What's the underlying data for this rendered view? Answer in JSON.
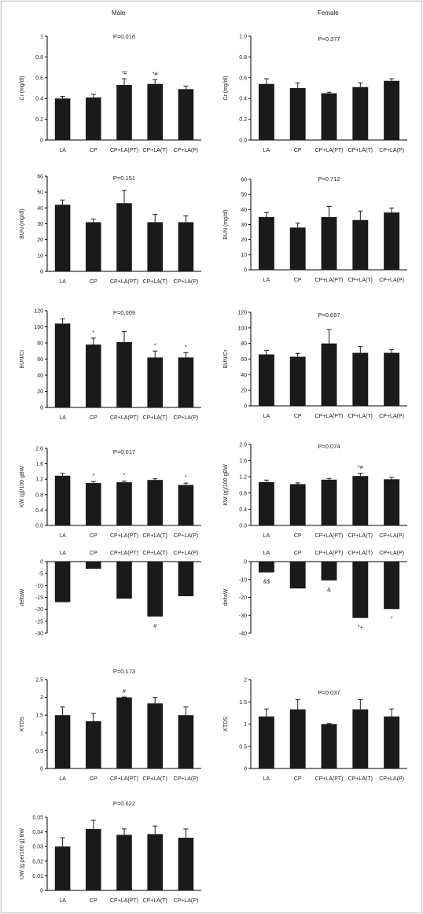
{
  "headers": {
    "male": "Male",
    "female": "Female"
  },
  "colors": {
    "bar": "#1a1a1a",
    "axis": "#000000",
    "text": "#222222"
  },
  "chart_data": [
    {
      "id": "m-cr",
      "type": "bar",
      "ylabel": "Cr (mg/dl)",
      "pvalue": "P=0.016",
      "categories": [
        "LA",
        "CP",
        "CP+LA(PT)",
        "CP+LA(T)",
        "CP+LA(P)"
      ],
      "values": [
        0.4,
        0.41,
        0.53,
        0.54,
        0.49
      ],
      "errors": [
        0.02,
        0.03,
        0.06,
        0.04,
        0.03
      ],
      "marks": [
        "",
        "",
        "*#",
        "*#",
        ""
      ],
      "ylim": [
        0,
        1.0
      ],
      "yticks": [
        "0",
        "0.2",
        "0.4",
        "0.6",
        "0.8",
        "1"
      ]
    },
    {
      "id": "f-cr",
      "type": "bar",
      "ylabel": "Cr (mg/dl)",
      "pvalue": "P=0.377",
      "categories": [
        "LA",
        "CP",
        "CP+LA(PT)",
        "CP+LA(T)",
        "CP+LA(P)"
      ],
      "values": [
        0.54,
        0.5,
        0.45,
        0.51,
        0.57
      ],
      "errors": [
        0.05,
        0.05,
        0.01,
        0.04,
        0.02
      ],
      "marks": [
        "",
        "",
        "",
        "",
        ""
      ],
      "ylim": [
        0,
        1.0
      ],
      "yticks": [
        "0.0",
        "0.2",
        "0.4",
        "0.6",
        "0.8",
        "1.0"
      ]
    },
    {
      "id": "m-bun",
      "type": "bar",
      "ylabel": "BUN (mg/dl)",
      "pvalue": "P=0.151",
      "categories": [
        "LA",
        "CP",
        "CP+LA(PT)",
        "CP+LA(T)",
        "CP+LA(P)"
      ],
      "values": [
        42,
        31,
        43,
        31,
        31
      ],
      "errors": [
        3,
        2,
        8,
        5,
        4
      ],
      "marks": [
        "",
        "",
        "",
        "",
        ""
      ],
      "ylim": [
        0,
        60
      ],
      "yticks": [
        "0",
        "10",
        "20",
        "30",
        "40",
        "50",
        "60"
      ]
    },
    {
      "id": "f-bun",
      "type": "bar",
      "ylabel": "BUN (mg/dl)",
      "pvalue": "P=0.712",
      "categories": [
        "LA",
        "CP",
        "CP+LA(PT)",
        "CP+LA(T)",
        "CP+LA(P)"
      ],
      "values": [
        35,
        28,
        35,
        33,
        38
      ],
      "errors": [
        3,
        3,
        7,
        6,
        3
      ],
      "marks": [
        "",
        "",
        "",
        "",
        ""
      ],
      "ylim": [
        0,
        60
      ],
      "yticks": [
        "0",
        "10",
        "20",
        "30",
        "40",
        "50",
        "60"
      ]
    },
    {
      "id": "m-buncr",
      "type": "bar",
      "ylabel": "BUN/Cr",
      "pvalue": "P=0.009",
      "categories": [
        "LA",
        "CP",
        "CP+LA(PT)",
        "CP+LA(T)",
        "CP+LA(P)"
      ],
      "values": [
        104,
        78,
        81,
        62,
        62
      ],
      "errors": [
        6,
        8,
        13,
        8,
        6
      ],
      "marks": [
        "",
        "*",
        "",
        "*",
        "*"
      ],
      "ylim": [
        0,
        120
      ],
      "yticks": [
        "0",
        "20",
        "40",
        "60",
        "80",
        "100",
        "120"
      ]
    },
    {
      "id": "f-buncr",
      "type": "bar",
      "ylabel": "BUN/Cr",
      "pvalue": "P=0.697",
      "categories": [
        "LA",
        "CP",
        "CP+LA(PT)",
        "CP+LA(T)",
        "CP+LA(P)"
      ],
      "values": [
        66,
        63,
        80,
        68,
        68
      ],
      "errors": [
        5,
        4,
        18,
        8,
        4
      ],
      "marks": [
        "",
        "",
        "",
        "",
        ""
      ],
      "ylim": [
        0,
        120
      ],
      "yticks": [
        "0",
        "20",
        "40",
        "60",
        "80",
        "100",
        "120"
      ]
    },
    {
      "id": "m-kw",
      "type": "bar",
      "ylabel": "KW (g)/100 gBW",
      "pvalue": "P=0.017",
      "categories": [
        "LA",
        "CP",
        "CP+LA(PT)",
        "CP+LA(T)",
        "CP+LA(P)"
      ],
      "values": [
        1.29,
        1.1,
        1.12,
        1.18,
        1.05
      ],
      "errors": [
        0.06,
        0.04,
        0.03,
        0.03,
        0.05
      ],
      "marks": [
        "",
        "*",
        "*",
        "",
        "*"
      ],
      "ylim": [
        0,
        2.0
      ],
      "yticks": [
        "0.0",
        "0.4",
        "0.8",
        "1.2",
        "1.6",
        "2.0"
      ]
    },
    {
      "id": "f-kw",
      "type": "bar",
      "ylabel": "KW (g)/100 gBW",
      "pvalue": "P=0.074",
      "categories": [
        "LA",
        "CP",
        "CP+LA(PT)",
        "CP+LA(T)",
        "CP+LA(P)"
      ],
      "values": [
        1.07,
        1.02,
        1.13,
        1.22,
        1.14
      ],
      "errors": [
        0.05,
        0.03,
        0.03,
        0.07,
        0.05
      ],
      "marks": [
        "",
        "",
        "",
        "*#",
        ""
      ],
      "ylim": [
        0,
        2.0
      ],
      "yticks": [
        "0.0",
        "0.4",
        "0.8",
        "1.2",
        "1.6",
        "2.0"
      ]
    },
    {
      "id": "m-dw",
      "type": "bar",
      "ylabel": "deltaW",
      "pvalue": "",
      "categories": [
        "LA",
        "CP",
        "CP+LA(PT)",
        "CP+LA(T)",
        "CP+LA(P)"
      ],
      "values": [
        -17,
        -3,
        -15.5,
        -23,
        -14.5
      ],
      "errors": [
        0,
        0,
        0,
        0,
        0
      ],
      "marks": [
        "",
        "",
        "",
        "#",
        ""
      ],
      "ylim": [
        -30,
        0
      ],
      "yticks": [
        "-30",
        "-25",
        "-20",
        "-15",
        "-10",
        "-5",
        "0"
      ]
    },
    {
      "id": "f-dw",
      "type": "bar",
      "ylabel": "deltaW",
      "pvalue": "",
      "categories": [
        "LA",
        "CP",
        "CP+LA(PT)",
        "CP+LA(T)",
        "CP+LA(P)"
      ],
      "values": [
        -6,
        -15,
        -10.5,
        -31.5,
        -26.5
      ],
      "errors": [
        0,
        0,
        0,
        0,
        0
      ],
      "marks": [
        "&$",
        "",
        "&",
        "*+",
        "*"
      ],
      "ylim": [
        -40,
        0
      ],
      "yticks": [
        "-40",
        "-30",
        "-20",
        "-10",
        "0"
      ]
    },
    {
      "id": "m-ktds",
      "type": "bar",
      "ylabel": "KTDS",
      "pvalue": "P=0.173",
      "categories": [
        "LA",
        "CP",
        "CP+LA(PT)",
        "CP+LA(T)",
        "CP+LA(P)"
      ],
      "values": [
        1.5,
        1.33,
        2.0,
        1.83,
        1.5
      ],
      "errors": [
        0.23,
        0.22,
        0.01,
        0.17,
        0.23
      ],
      "marks": [
        "",
        "",
        "#",
        "",
        ""
      ],
      "ylim": [
        0,
        2.5
      ],
      "yticks": [
        "0",
        "0.5",
        "1",
        "1.5",
        "2",
        "2.5"
      ]
    },
    {
      "id": "f-ktds",
      "type": "bar",
      "ylabel": "KTDS",
      "pvalue": "P=0.037",
      "categories": [
        "LA",
        "CP",
        "CP+LA(PT)",
        "CP+LA(T)",
        "CP+LA(P)"
      ],
      "values": [
        1.17,
        1.33,
        1.0,
        1.33,
        1.17
      ],
      "errors": [
        0.17,
        0.22,
        0.01,
        0.22,
        0.17
      ],
      "marks": [
        "",
        "",
        "",
        "",
        ""
      ],
      "ylim": [
        0,
        2
      ],
      "yticks": [
        "0",
        "0.5",
        "1",
        "1.5",
        "2"
      ]
    },
    {
      "id": "m-uw",
      "type": "bar",
      "ylabel": "UW (g per100 g) BW",
      "pvalue": "P=0.622",
      "categories": [
        "LA",
        "CP",
        "CP+LA(PT)",
        "CP+LA(T)",
        "CP+LA(P)"
      ],
      "values": [
        0.03,
        0.042,
        0.038,
        0.0385,
        0.036
      ],
      "errors": [
        0.006,
        0.006,
        0.004,
        0.0055,
        0.006
      ],
      "marks": [
        "",
        "",
        "",
        "",
        ""
      ],
      "ylim": [
        0,
        0.05
      ],
      "yticks": [
        "0",
        "0.01",
        "0.02",
        "0.03",
        "0.04",
        "0.05"
      ]
    }
  ]
}
